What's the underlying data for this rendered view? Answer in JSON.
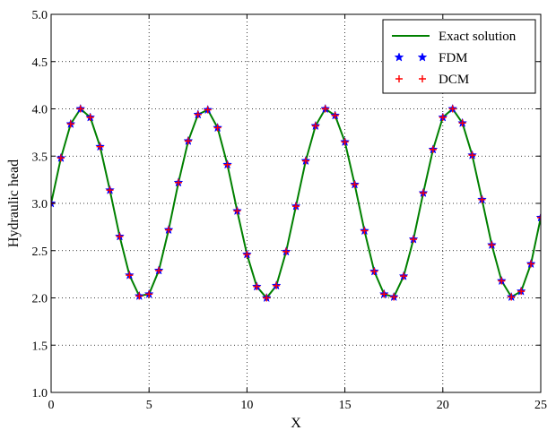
{
  "chart_data": {
    "type": "line",
    "title": "",
    "xlabel": "X",
    "ylabel": "Hydraulic head",
    "xlim": [
      0,
      25
    ],
    "ylim": [
      1.0,
      5.0
    ],
    "xticks": [
      "0",
      "5",
      "10",
      "15",
      "20",
      "25"
    ],
    "yticks": [
      "1.0",
      "1.5",
      "2.0",
      "2.5",
      "3.0",
      "3.5",
      "4.0",
      "4.5",
      "5.0"
    ],
    "grid": true,
    "legend_position": "top-right",
    "x": [
      0,
      0.5,
      1,
      1.5,
      2,
      2.5,
      3,
      3.5,
      4,
      4.5,
      5,
      5.5,
      6,
      6.5,
      7,
      7.5,
      8,
      8.5,
      9,
      9.5,
      10,
      10.5,
      11,
      11.5,
      12,
      12.5,
      13,
      13.5,
      14,
      14.5,
      15,
      15.5,
      16,
      16.5,
      17,
      17.5,
      18,
      18.5,
      19,
      19.5,
      20,
      20.5,
      21,
      21.5,
      22,
      22.5,
      23,
      23.5,
      24,
      24.5,
      25
    ],
    "series": [
      {
        "name": "Exact solution",
        "style": "line",
        "color": "#008000",
        "values": [
          3.0,
          3.48,
          3.84,
          4.0,
          3.91,
          3.6,
          3.14,
          2.65,
          2.24,
          2.02,
          2.04,
          2.29,
          2.72,
          3.22,
          3.66,
          3.94,
          3.99,
          3.8,
          3.41,
          2.92,
          2.46,
          2.12,
          2.0,
          2.13,
          2.49,
          2.97,
          3.45,
          3.82,
          4.0,
          3.93,
          3.65,
          3.2,
          2.71,
          2.28,
          2.04,
          2.01,
          2.23,
          2.62,
          3.11,
          3.57,
          3.91,
          4.0,
          3.85,
          3.51,
          3.04,
          2.56,
          2.18,
          2.01,
          2.07,
          2.36,
          2.85
        ]
      },
      {
        "name": "FDM",
        "style": "star",
        "color": "#0000ff",
        "values": [
          3.0,
          3.48,
          3.84,
          4.0,
          3.91,
          3.6,
          3.14,
          2.65,
          2.24,
          2.02,
          2.04,
          2.29,
          2.72,
          3.22,
          3.66,
          3.94,
          3.99,
          3.8,
          3.41,
          2.92,
          2.46,
          2.12,
          2.0,
          2.13,
          2.49,
          2.97,
          3.45,
          3.82,
          4.0,
          3.93,
          3.65,
          3.2,
          2.71,
          2.28,
          2.04,
          2.01,
          2.23,
          2.62,
          3.11,
          3.57,
          3.91,
          4.0,
          3.85,
          3.51,
          3.04,
          2.56,
          2.18,
          2.01,
          2.07,
          2.36,
          2.85
        ]
      },
      {
        "name": "DCM",
        "style": "plus",
        "color": "#ff0000",
        "values": [
          3.0,
          3.48,
          3.84,
          4.0,
          3.91,
          3.6,
          3.14,
          2.65,
          2.24,
          2.02,
          2.04,
          2.29,
          2.72,
          3.22,
          3.66,
          3.94,
          3.99,
          3.8,
          3.41,
          2.92,
          2.46,
          2.12,
          2.0,
          2.13,
          2.49,
          2.97,
          3.45,
          3.82,
          4.0,
          3.93,
          3.65,
          3.2,
          2.71,
          2.28,
          2.04,
          2.01,
          2.23,
          2.62,
          3.11,
          3.57,
          3.91,
          4.0,
          3.85,
          3.51,
          3.04,
          2.56,
          2.18,
          2.01,
          2.07,
          2.36,
          2.85
        ]
      }
    ]
  }
}
